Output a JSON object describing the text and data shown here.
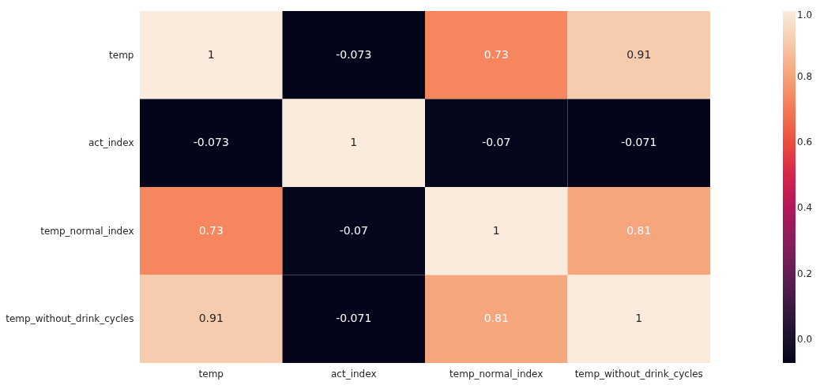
{
  "chart_data": {
    "type": "heatmap",
    "categories": [
      "temp",
      "act_index",
      "temp_normal_index",
      "temp_without_drink_cycles"
    ],
    "y_categories": [
      "temp",
      "act_index",
      "temp_normal_index",
      "temp_without_drink_cycles"
    ],
    "cells": [
      [
        1,
        -0.073,
        0.73,
        0.91
      ],
      [
        -0.073,
        1,
        -0.07,
        -0.071
      ],
      [
        0.73,
        -0.07,
        1,
        0.81
      ],
      [
        0.91,
        -0.071,
        0.81,
        1
      ]
    ],
    "data_labels": true,
    "clim": [
      -0.073,
      1.0
    ],
    "cticks": [
      {
        "value": 0,
        "label": "0.0"
      },
      0.2,
      0.4,
      0.6,
      0.8,
      {
        "value": 1,
        "label": "1.0"
      }
    ]
  }
}
